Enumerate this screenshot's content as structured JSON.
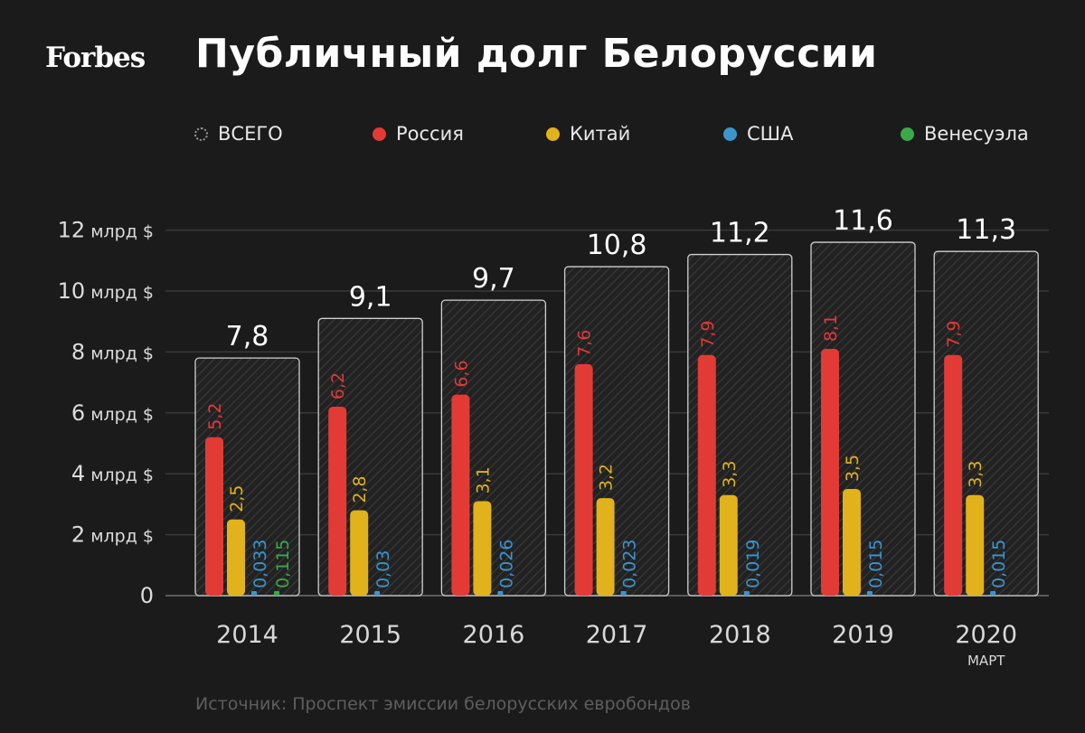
{
  "brand": "Forbes",
  "title": "Публичный долг Белоруссии",
  "source": "Источник: Проспект эмиссии белорусских евробондов",
  "colors": {
    "background": "#1b1b1b",
    "total_outline": "#cfcfcf",
    "russia": "#e23b36",
    "china": "#e1b21b",
    "usa": "#3d95cc",
    "venezuela": "#3aa84a"
  },
  "chart_data": {
    "type": "bar",
    "categories": [
      "2014",
      "2015",
      "2016",
      "2017",
      "2018",
      "2019",
      "2020"
    ],
    "category_sublabels": [
      "",
      "",
      "",
      "",
      "",
      "",
      "МАРТ"
    ],
    "yticks": [
      "0",
      "2 млрд $",
      "4 млрд $",
      "6 млрд $",
      "8 млрд $",
      "10 млрд $",
      "12 млрд $"
    ],
    "ylim": [
      0,
      12
    ],
    "total": {
      "name": "ВСЕГО",
      "values": [
        7.8,
        9.1,
        9.7,
        10.8,
        11.2,
        11.6,
        11.3
      ],
      "labels": [
        "7,8",
        "9,1",
        "9,7",
        "10,8",
        "11,2",
        "11,6",
        "11,3"
      ]
    },
    "series": [
      {
        "name": "Россия",
        "color_key": "russia",
        "values": [
          5.2,
          6.2,
          6.6,
          7.6,
          7.9,
          8.1,
          7.9
        ],
        "labels": [
          "5,2",
          "6,2",
          "6,6",
          "7,6",
          "7,9",
          "8,1",
          "7,9"
        ]
      },
      {
        "name": "Китай",
        "color_key": "china",
        "values": [
          2.5,
          2.8,
          3.1,
          3.2,
          3.3,
          3.5,
          3.3
        ],
        "labels": [
          "2,5",
          "2,8",
          "3,1",
          "3,2",
          "3,3",
          "3,5",
          "3,3"
        ]
      },
      {
        "name": "США",
        "color_key": "usa",
        "values": [
          0.033,
          0.03,
          0.026,
          0.023,
          0.019,
          0.015,
          0.015
        ],
        "labels": [
          "0,033",
          "0,03",
          "0,026",
          "0,023",
          "0,019",
          "0,015",
          "0,015"
        ]
      },
      {
        "name": "Венесуэла",
        "color_key": "venezuela",
        "values": [
          0.115,
          null,
          null,
          null,
          null,
          null,
          null
        ],
        "labels": [
          "0,115",
          "",
          "",
          "",
          "",
          "",
          ""
        ]
      }
    ],
    "grid": true,
    "legend_position": "top"
  }
}
